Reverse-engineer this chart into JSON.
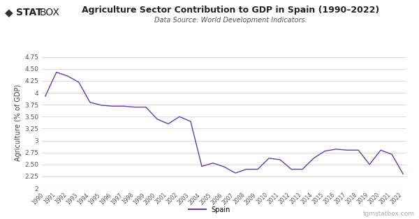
{
  "title": "Agriculture Sector Contribution to GDP in Spain (1990–2022)",
  "subtitle": "Data Source: World Development Indicators.",
  "ylabel": "Agriculture (% of GDP)",
  "watermark": "tgmstatbox.com",
  "legend_label": "Spain",
  "line_color": "#6b3a9e",
  "background_color": "#ffffff",
  "grid_color": "#cccccc",
  "years": [
    1990,
    1991,
    1992,
    1993,
    1994,
    1995,
    1996,
    1997,
    1998,
    1999,
    2000,
    2001,
    2002,
    2003,
    2004,
    2005,
    2006,
    2007,
    2008,
    2009,
    2010,
    2011,
    2012,
    2013,
    2014,
    2015,
    2016,
    2017,
    2018,
    2019,
    2020,
    2021,
    2022
  ],
  "values": [
    3.93,
    4.43,
    4.35,
    4.22,
    3.8,
    3.74,
    3.72,
    3.72,
    3.7,
    3.7,
    3.45,
    3.35,
    3.5,
    3.4,
    2.46,
    2.53,
    2.45,
    2.32,
    2.4,
    2.4,
    2.63,
    2.6,
    2.4,
    2.4,
    2.63,
    2.78,
    2.82,
    2.8,
    2.8,
    2.5,
    2.8,
    2.71,
    2.3
  ],
  "ylim": [
    2.0,
    4.75
  ],
  "yticks": [
    2.0,
    2.25,
    2.5,
    2.75,
    3.0,
    3.25,
    3.5,
    3.75,
    4.0,
    4.25,
    4.5,
    4.75
  ]
}
